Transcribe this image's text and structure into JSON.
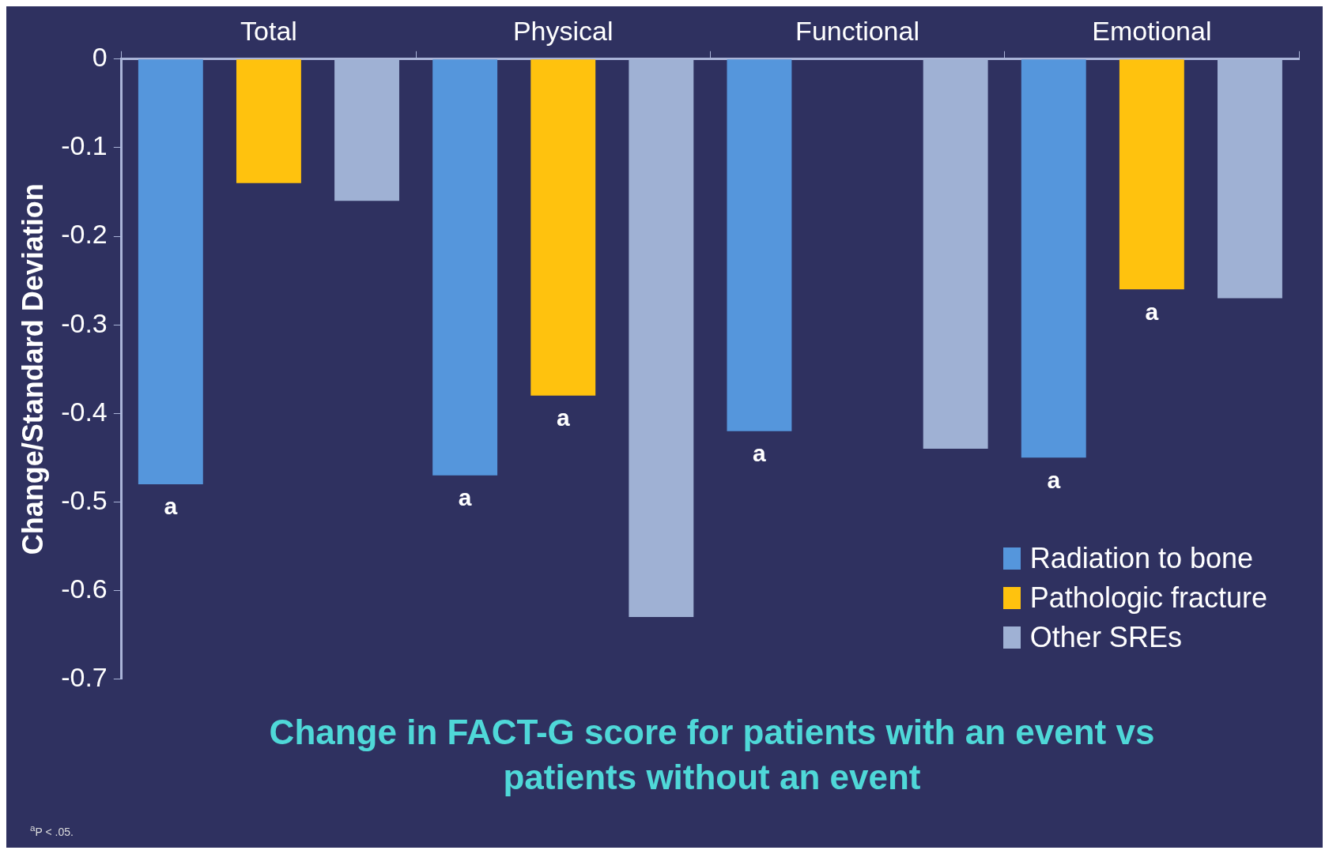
{
  "chart_data": {
    "type": "bar",
    "title": "Change in FACT-G score for patients with an event vs patients without an event",
    "ylabel": "Change/Standard Deviation",
    "categories": [
      "Total",
      "Physical",
      "Functional",
      "Emotional"
    ],
    "series": [
      {
        "name": "Radiation to bone",
        "color": "#5596dc",
        "values": [
          -0.48,
          -0.47,
          -0.42,
          -0.45
        ],
        "value_labels": [
          "a",
          "a",
          "a",
          "a"
        ]
      },
      {
        "name": "Pathologic fracture",
        "color": "#ffc20e",
        "values": [
          -0.14,
          -0.38,
          null,
          -0.26
        ],
        "value_labels": [
          null,
          "a",
          null,
          "a"
        ]
      },
      {
        "name": "Other SREs",
        "color": "#9fb1d4",
        "values": [
          -0.16,
          -0.63,
          -0.44,
          -0.27
        ]
      }
    ],
    "ylim": [
      -0.7,
      0
    ],
    "yticks": [
      -0.7,
      -0.6,
      -0.5,
      -0.4,
      -0.3,
      -0.2,
      -0.1,
      0
    ],
    "grid": false,
    "legend": "bottom right",
    "annotations": [
      "$^{a}$P < .05."
    ]
  }
}
